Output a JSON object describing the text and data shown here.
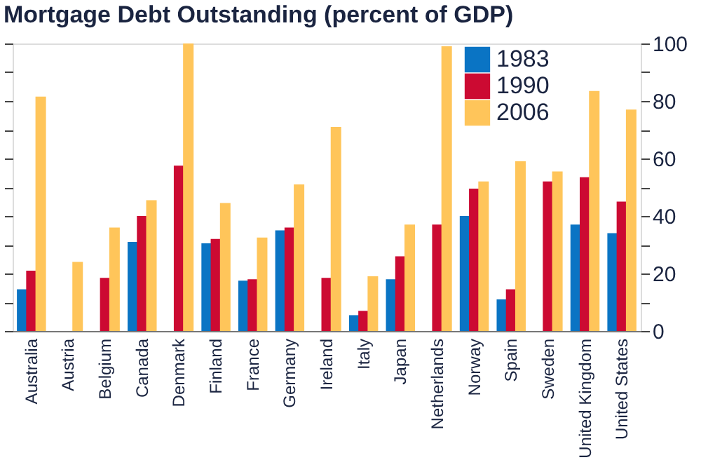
{
  "chart_data": {
    "type": "bar",
    "title": "Mortgage Debt Outstanding (percent of GDP)",
    "categories": [
      "Australia",
      "Austria",
      "Belgium",
      "Canada",
      "Denmark",
      "Finland",
      "France",
      "Germany",
      "Ireland",
      "Italy",
      "Japan",
      "Netherlands",
      "Norway",
      "Spain",
      "Sweden",
      "United Kingdom",
      "United States"
    ],
    "series": [
      {
        "name": "1983",
        "color": "#0a74c4",
        "values": [
          14.5,
          null,
          null,
          31,
          null,
          30.5,
          17.5,
          35,
          null,
          5.5,
          18,
          null,
          40,
          11,
          null,
          37,
          34
        ]
      },
      {
        "name": "1990",
        "color": "#cc0a32",
        "values": [
          21,
          null,
          18.5,
          40,
          57.5,
          32,
          18,
          36,
          18.5,
          7,
          26,
          37,
          49.5,
          14.5,
          52,
          53.5,
          45
        ]
      },
      {
        "name": "2006",
        "color": "#ffc55a",
        "values": [
          81.5,
          24,
          36,
          45.5,
          100,
          44.5,
          32.5,
          51,
          71,
          19,
          37,
          99,
          52,
          59,
          55.5,
          83.5,
          77
        ]
      }
    ],
    "ylim": [
      0,
      100
    ],
    "yticks": [
      0,
      {
        "value": 10,
        "label": null
      },
      20,
      {
        "value": 30,
        "label": null
      },
      40,
      {
        "value": 50,
        "label": null
      },
      60,
      {
        "value": 70,
        "label": null
      },
      80,
      {
        "value": 90,
        "label": null
      },
      100
    ],
    "grid": false,
    "legend": "top right"
  }
}
